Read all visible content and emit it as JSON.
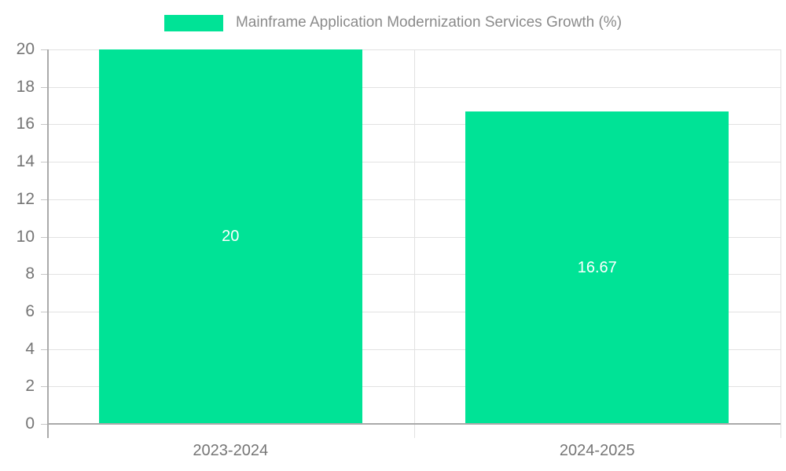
{
  "chart_data": {
    "type": "bar",
    "title": "Mainframe Application Modernization Services Growth (%)",
    "categories": [
      "2023-2024",
      "2024-2025"
    ],
    "values": [
      20,
      16.67
    ],
    "value_labels": [
      "20",
      "16.67"
    ],
    "xlabel": "",
    "ylabel": "",
    "ylim": [
      0,
      20
    ],
    "yticks": [
      0,
      2,
      4,
      6,
      8,
      10,
      12,
      14,
      16,
      18,
      20
    ],
    "grid": true,
    "legend_position": "top",
    "colors": {
      "bar": "#00E396",
      "grid": "#e2e2e2",
      "axis": "#aaaaaa",
      "axis_label": "#757575",
      "legend_text": "#8b8b8b",
      "value_label": "#ffffff"
    }
  }
}
